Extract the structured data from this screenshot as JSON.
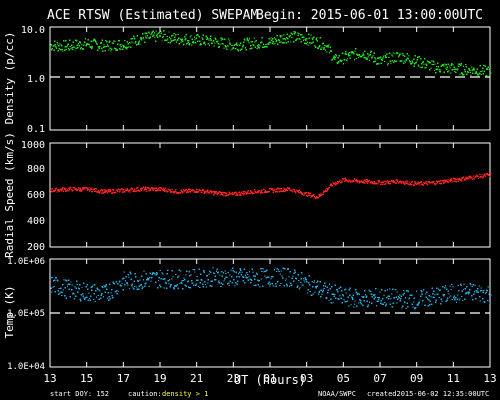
{
  "header": {
    "title": "ACE RTSW (Estimated) SWEPAM",
    "begin": "Begin: 2015-06-01 13:00:00UTC"
  },
  "footer": {
    "start_doy": "start DOY: 152",
    "caution": "caution:",
    "caution_value": "density > 1",
    "source": "NOAA/SWPC",
    "created": "created2015-06-02 12:35:00UTC"
  },
  "xaxis": {
    "label": "UT (hours)",
    "ticks": [
      "13",
      "15",
      "17",
      "19",
      "21",
      "23",
      "01",
      "03",
      "05",
      "07",
      "09",
      "11",
      "13"
    ]
  },
  "colors": {
    "density": "#22dd22",
    "speed": "#ff2222",
    "temp": "#22aadd",
    "background": "#000000",
    "foreground": "#ffffff"
  },
  "chart_data": [
    {
      "type": "scatter",
      "ylabel": "Density (p/cc)",
      "yscale": "log",
      "ylim": [
        0.1,
        10
      ],
      "yticks": [
        "10.0",
        "1.0",
        "0.1"
      ],
      "reference_line": 1.0,
      "x_hours_from_13UT": [
        0,
        1,
        2,
        3,
        4,
        5,
        6,
        7,
        8,
        9,
        10,
        11,
        12,
        13,
        14,
        15,
        15.5,
        16,
        17,
        18,
        19,
        20,
        21,
        22,
        23,
        24
      ],
      "y": [
        4.5,
        4.4,
        4.9,
        4.4,
        4.8,
        6.2,
        7.0,
        6.0,
        5.8,
        5.3,
        4.5,
        5.0,
        5.2,
        6.8,
        6.0,
        4.5,
        2.3,
        2.6,
        3.3,
        2.2,
        2.8,
        2.2,
        1.7,
        1.6,
        1.5,
        1.4
      ]
    },
    {
      "type": "scatter",
      "ylabel": "Radial Speed (km/s)",
      "ylim": [
        200,
        1000
      ],
      "yticks": [
        "1000",
        "800",
        "600",
        "400",
        "200"
      ],
      "x_hours_from_13UT": [
        0,
        1,
        2,
        3,
        4,
        5,
        6,
        7,
        8,
        9,
        10,
        11,
        12,
        13,
        14,
        14.6,
        15.4,
        16,
        17,
        18,
        19,
        20,
        21,
        22,
        23,
        24
      ],
      "y": [
        640,
        650,
        650,
        630,
        640,
        650,
        650,
        630,
        640,
        620,
        610,
        630,
        640,
        650,
        610,
        590,
        690,
        720,
        710,
        700,
        710,
        690,
        700,
        720,
        740,
        760
      ]
    },
    {
      "type": "scatter",
      "ylabel": "Temp (K)",
      "yscale": "log",
      "ylim": [
        10000,
        1000000
      ],
      "yticks": [
        "1.0E+06",
        "1.0E+05",
        "1.0E+04"
      ],
      "reference_line": 100000,
      "x_hours_from_13UT": [
        0,
        1,
        2,
        3,
        4,
        5,
        6,
        7,
        8,
        9,
        10,
        11,
        12,
        13,
        14,
        15,
        16,
        17,
        18,
        19,
        20,
        21,
        22,
        23,
        24
      ],
      "y": [
        350000,
        280000,
        250000,
        230000,
        400000,
        420000,
        450000,
        430000,
        450000,
        480000,
        470000,
        460000,
        470000,
        480000,
        350000,
        250000,
        200000,
        190000,
        200000,
        190000,
        180000,
        210000,
        240000,
        250000,
        230000
      ]
    }
  ]
}
